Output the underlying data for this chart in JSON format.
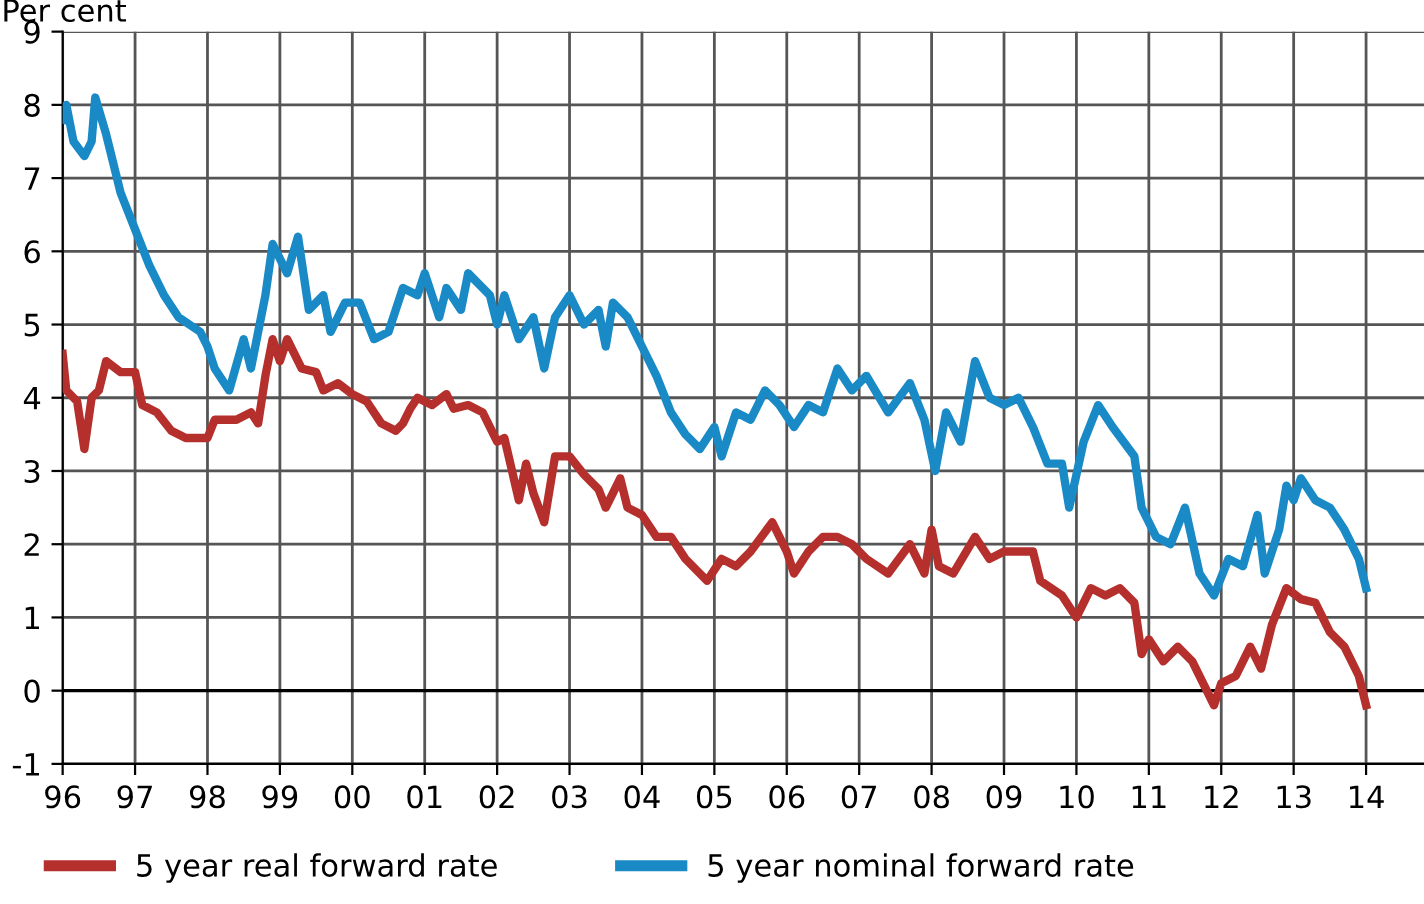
{
  "chart_data": {
    "type": "line",
    "ylabel": "Per cent",
    "xlim": [
      1996,
      2014.8
    ],
    "ylim": [
      -1,
      9
    ],
    "xticks": [
      {
        "value": 1996,
        "label": "96"
      },
      {
        "value": 1997,
        "label": "97"
      },
      {
        "value": 1998,
        "label": "98"
      },
      {
        "value": 1999,
        "label": "99"
      },
      {
        "value": 2000,
        "label": "00"
      },
      {
        "value": 2001,
        "label": "01"
      },
      {
        "value": 2002,
        "label": "02"
      },
      {
        "value": 2003,
        "label": "03"
      },
      {
        "value": 2004,
        "label": "04"
      },
      {
        "value": 2005,
        "label": "05"
      },
      {
        "value": 2006,
        "label": "06"
      },
      {
        "value": 2007,
        "label": "07"
      },
      {
        "value": 2008,
        "label": "08"
      },
      {
        "value": 2009,
        "label": "09"
      },
      {
        "value": 2010,
        "label": "10"
      },
      {
        "value": 2011,
        "label": "11"
      },
      {
        "value": 2012,
        "label": "12"
      },
      {
        "value": 2013,
        "label": "13"
      },
      {
        "value": 2014,
        "label": "14"
      }
    ],
    "yticks": [
      -1,
      0,
      1,
      2,
      3,
      4,
      5,
      6,
      7,
      8,
      9
    ],
    "grid": true,
    "legend": "bottom",
    "marker": "none",
    "line_style": "solid",
    "series": [
      {
        "name": "5 year real forward rate",
        "color": "#b5302c",
        "x": [
          1996.0,
          1996.05,
          1996.2,
          1996.3,
          1996.4,
          1996.5,
          1996.6,
          1996.8,
          1997.0,
          1997.1,
          1997.3,
          1997.5,
          1997.7,
          1997.9,
          1998.0,
          1998.1,
          1998.4,
          1998.6,
          1998.7,
          1998.8,
          1998.9,
          1999.0,
          1999.1,
          1999.3,
          1999.5,
          1999.6,
          1999.8,
          2000.0,
          2000.2,
          2000.4,
          2000.6,
          2000.7,
          2000.8,
          2000.9,
          2001.1,
          2001.3,
          2001.4,
          2001.6,
          2001.8,
          2002.0,
          2002.1,
          2002.3,
          2002.4,
          2002.5,
          2002.65,
          2002.8,
          2003.0,
          2003.2,
          2003.4,
          2003.5,
          2003.7,
          2003.8,
          2004.0,
          2004.2,
          2004.4,
          2004.6,
          2004.9,
          2005.1,
          2005.3,
          2005.5,
          2005.8,
          2006.0,
          2006.1,
          2006.3,
          2006.5,
          2006.7,
          2006.9,
          2007.1,
          2007.4,
          2007.7,
          2007.9,
          2008.0,
          2008.1,
          2008.3,
          2008.6,
          2008.8,
          2009.0,
          2009.2,
          2009.4,
          2009.5,
          2009.8,
          2010.0,
          2010.2,
          2010.4,
          2010.6,
          2010.8,
          2010.9,
          2011.0,
          2011.2,
          2011.4,
          2011.6,
          2011.8,
          2011.9,
          2012.0,
          2012.2,
          2012.4,
          2012.55,
          2012.7,
          2012.9,
          2013.1,
          2013.3,
          2013.5,
          2013.7,
          2013.9,
          2014.0
        ],
        "values": [
          4.6,
          4.1,
          3.95,
          3.3,
          4.0,
          4.1,
          4.5,
          4.35,
          4.35,
          3.9,
          3.8,
          3.55,
          3.45,
          3.45,
          3.45,
          3.7,
          3.7,
          3.8,
          3.65,
          4.3,
          4.8,
          4.5,
          4.8,
          4.4,
          4.35,
          4.1,
          4.2,
          4.05,
          3.95,
          3.65,
          3.55,
          3.65,
          3.85,
          4.0,
          3.9,
          4.05,
          3.85,
          3.9,
          3.8,
          3.4,
          3.45,
          2.6,
          3.1,
          2.7,
          2.3,
          3.2,
          3.2,
          2.95,
          2.75,
          2.5,
          2.9,
          2.5,
          2.4,
          2.1,
          2.1,
          1.8,
          1.5,
          1.8,
          1.7,
          1.9,
          2.3,
          1.9,
          1.6,
          1.9,
          2.1,
          2.1,
          2.0,
          1.8,
          1.6,
          2.0,
          1.6,
          2.2,
          1.7,
          1.6,
          2.1,
          1.8,
          1.9,
          1.9,
          1.9,
          1.5,
          1.3,
          1.0,
          1.4,
          1.3,
          1.4,
          1.2,
          0.5,
          0.7,
          0.4,
          0.6,
          0.4,
          0.0,
          -0.2,
          0.1,
          0.2,
          0.6,
          0.3,
          0.9,
          1.4,
          1.25,
          1.2,
          0.8,
          0.6,
          0.2,
          -0.2
        ]
      },
      {
        "name": "5 year nominal forward rate",
        "color": "#1a8ac6",
        "x": [
          1996.0,
          1996.05,
          1996.15,
          1996.3,
          1996.4,
          1996.45,
          1996.6,
          1996.8,
          1997.0,
          1997.2,
          1997.4,
          1997.6,
          1997.9,
          1998.0,
          1998.1,
          1998.3,
          1998.5,
          1998.6,
          1998.8,
          1998.9,
          1999.0,
          1999.1,
          1999.25,
          1999.4,
          1999.6,
          1999.7,
          1999.9,
          2000.1,
          2000.3,
          2000.5,
          2000.7,
          2000.9,
          2001.0,
          2001.2,
          2001.3,
          2001.5,
          2001.6,
          2001.9,
          2002.0,
          2002.1,
          2002.3,
          2002.5,
          2002.65,
          2002.8,
          2003.0,
          2003.2,
          2003.4,
          2003.5,
          2003.6,
          2003.8,
          2004.0,
          2004.2,
          2004.4,
          2004.6,
          2004.8,
          2005.0,
          2005.1,
          2005.3,
          2005.5,
          2005.7,
          2005.9,
          2006.1,
          2006.3,
          2006.5,
          2006.7,
          2006.9,
          2007.1,
          2007.4,
          2007.7,
          2007.9,
          2008.05,
          2008.2,
          2008.4,
          2008.6,
          2008.8,
          2009.0,
          2009.2,
          2009.4,
          2009.6,
          2009.8,
          2009.9,
          2010.1,
          2010.3,
          2010.5,
          2010.8,
          2010.9,
          2011.1,
          2011.3,
          2011.5,
          2011.7,
          2011.9,
          2012.1,
          2012.3,
          2012.5,
          2012.6,
          2012.8,
          2012.9,
          2013.0,
          2013.1,
          2013.3,
          2013.5,
          2013.7,
          2013.9,
          2014.0
        ],
        "values": [
          7.8,
          8.0,
          7.5,
          7.3,
          7.5,
          8.1,
          7.6,
          6.8,
          6.3,
          5.8,
          5.4,
          5.1,
          4.9,
          4.7,
          4.4,
          4.1,
          4.8,
          4.4,
          5.4,
          6.1,
          5.9,
          5.7,
          6.2,
          5.2,
          5.4,
          4.9,
          5.3,
          5.3,
          4.8,
          4.9,
          5.5,
          5.4,
          5.7,
          5.1,
          5.5,
          5.2,
          5.7,
          5.4,
          5.0,
          5.4,
          4.8,
          5.1,
          4.4,
          5.1,
          5.4,
          5.0,
          5.2,
          4.7,
          5.3,
          5.1,
          4.7,
          4.3,
          3.8,
          3.5,
          3.3,
          3.6,
          3.2,
          3.8,
          3.7,
          4.1,
          3.9,
          3.6,
          3.9,
          3.8,
          4.4,
          4.1,
          4.3,
          3.8,
          4.2,
          3.7,
          3.0,
          3.8,
          3.4,
          4.5,
          4.0,
          3.9,
          4.0,
          3.6,
          3.1,
          3.1,
          2.5,
          3.4,
          3.9,
          3.6,
          3.2,
          2.5,
          2.1,
          2.0,
          2.5,
          1.6,
          1.3,
          1.8,
          1.7,
          2.4,
          1.6,
          2.2,
          2.8,
          2.6,
          2.9,
          2.6,
          2.5,
          2.2,
          1.8,
          1.4
        ]
      }
    ]
  }
}
